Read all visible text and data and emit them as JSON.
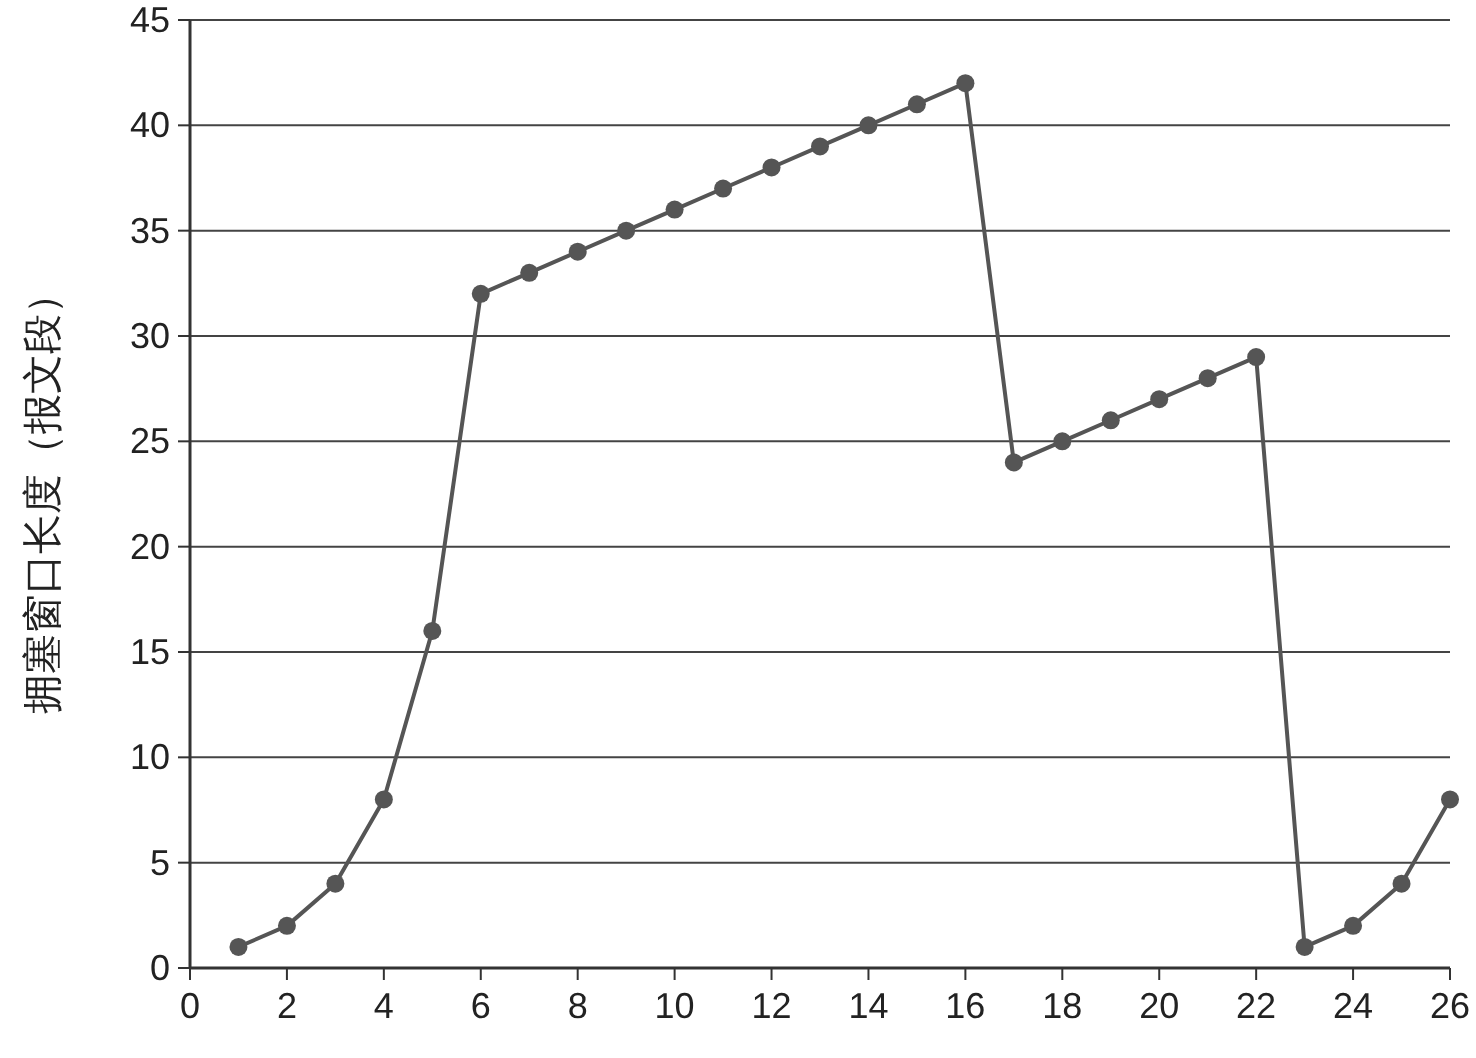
{
  "chart_data": {
    "type": "line",
    "ylabel": "拥塞窗口长度（报文段）",
    "x": [
      1,
      2,
      3,
      4,
      5,
      6,
      7,
      8,
      9,
      10,
      11,
      12,
      13,
      14,
      15,
      16,
      17,
      18,
      19,
      20,
      21,
      22,
      23,
      24,
      25,
      26
    ],
    "series": [
      {
        "color": "#555555",
        "values": [
          1,
          2,
          4,
          8,
          16,
          32,
          33,
          34,
          35,
          36,
          37,
          38,
          39,
          40,
          41,
          42,
          24,
          25,
          26,
          27,
          28,
          29,
          1,
          2,
          4,
          8
        ]
      }
    ],
    "xlim": [
      0,
      26
    ],
    "ylim": [
      0,
      45
    ],
    "xticks": [
      0,
      2,
      4,
      6,
      8,
      10,
      12,
      14,
      16,
      18,
      20,
      22,
      24,
      26
    ],
    "yticks": [
      0,
      5,
      10,
      15,
      20,
      25,
      30,
      35,
      40,
      45
    ],
    "grid": "y",
    "marker": "circle"
  }
}
